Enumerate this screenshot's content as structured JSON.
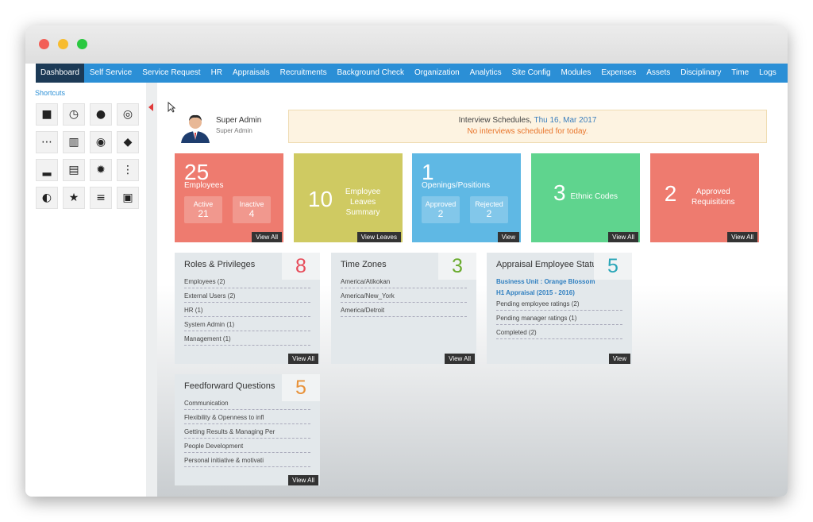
{
  "nav": [
    "Dashboard",
    "Self Service",
    "Service Request",
    "HR",
    "Appraisals",
    "Recruitments",
    "Background Check",
    "Organization",
    "Analytics",
    "Site Config",
    "Modules",
    "Expenses",
    "Assets",
    "Disciplinary",
    "Time",
    "Logs"
  ],
  "shortcuts": {
    "title": "Shortcuts"
  },
  "user": {
    "name": "Super Admin",
    "role": "Super Admin"
  },
  "interview": {
    "title": "Interview Schedules,",
    "date": "Thu 16, Mar 2017",
    "message": "No interviews scheduled for today."
  },
  "tiles": [
    {
      "number": 25,
      "label": "Employees",
      "stats": [
        {
          "label": "Active",
          "value": 21
        },
        {
          "label": "Inactive",
          "value": 4
        }
      ],
      "button": "View All"
    },
    {
      "number": 10,
      "label": "Employee Leaves Summary",
      "button": "View Leaves"
    },
    {
      "number": 1,
      "label": "Openings/Positions",
      "stats": [
        {
          "label": "Approved",
          "value": 2
        },
        {
          "label": "Rejected",
          "value": 2
        }
      ],
      "button": "View"
    },
    {
      "number": 3,
      "label": "Ethnic Codes",
      "button": "View All"
    },
    {
      "number": 2,
      "label": "Approved Requisitions",
      "button": "View All"
    }
  ],
  "panels": [
    {
      "title": "Roles & Privileges",
      "count": 8,
      "items": [
        "Employees (2)",
        "External Users (2)",
        "HR (1)",
        "System Admin (1)",
        "Management (1)"
      ],
      "button": "View All"
    },
    {
      "title": "Time Zones",
      "count": 3,
      "items": [
        "America/Atikokan",
        "America/New_York",
        "America/Detroit"
      ],
      "button": "View All"
    },
    {
      "title": "Appraisal Employee Status",
      "count": 5,
      "links": [
        "Business Unit : Orange Blossom",
        "H1 Appraisal (2015 - 2016)"
      ],
      "items": [
        "Pending employee ratings (2)",
        "Pending manager ratings (1)",
        "Completed (2)"
      ],
      "button": "View"
    },
    {
      "title": "Feedforward Questions",
      "count": 5,
      "items": [
        "Communication",
        "Flexibility & Openness to infl",
        "Getting Results & Managing Per",
        "People Development",
        "Personal initiative & motivati"
      ],
      "button": "View All"
    }
  ]
}
